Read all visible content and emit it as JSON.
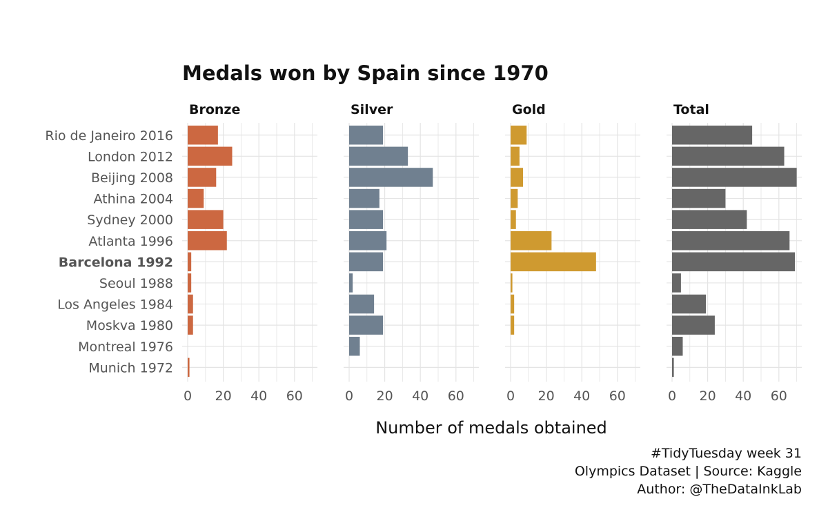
{
  "chart_data": {
    "type": "bar",
    "orientation": "horizontal",
    "title": "Medals won by Spain since 1970",
    "xlabel": "Number of medals obtained",
    "xlim": [
      0,
      72
    ],
    "xticks": [
      0,
      20,
      40,
      60
    ],
    "grid": true,
    "categories": [
      "Rio de Janeiro 2016",
      "London 2012",
      "Beijing 2008",
      "Athina 2004",
      "Sydney 2000",
      "Atlanta 1996",
      "Barcelona 1992",
      "Seoul 1988",
      "Los Angeles 1984",
      "Moskva 1980",
      "Montreal 1976",
      "Munich 1972"
    ],
    "highlight_category": "Barcelona 1992",
    "series": [
      {
        "name": "Bronze",
        "color": "#CC6841",
        "values": [
          17,
          25,
          16,
          9,
          20,
          22,
          2,
          2,
          3,
          3,
          0,
          1
        ]
      },
      {
        "name": "Silver",
        "color": "#708090",
        "values": [
          19,
          33,
          47,
          17,
          19,
          21,
          19,
          2,
          14,
          19,
          6,
          0
        ]
      },
      {
        "name": "Gold",
        "color": "#CF9A30",
        "values": [
          9,
          5,
          7,
          4,
          3,
          23,
          48,
          1,
          2,
          2,
          0,
          0
        ]
      },
      {
        "name": "Total",
        "color": "#666666",
        "values": [
          45,
          63,
          70,
          30,
          42,
          66,
          69,
          5,
          19,
          24,
          6,
          1
        ]
      }
    ]
  },
  "caption": {
    "line1": "#TidyTuesday week 31",
    "line2": "Olympics Dataset | Source: Kaggle",
    "line3": "Author: @TheDataInkLab"
  }
}
